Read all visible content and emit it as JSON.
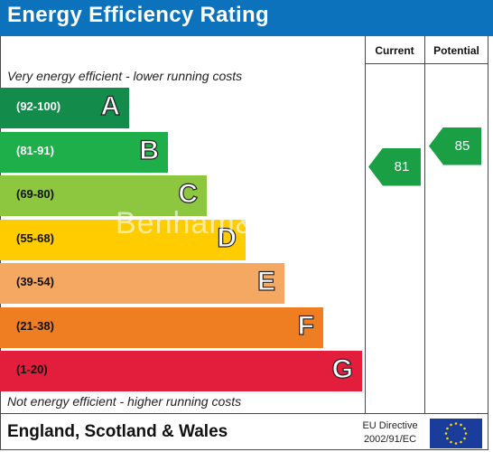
{
  "header": {
    "title": "Energy Efficiency Rating"
  },
  "columns": {
    "current_label": "Current",
    "potential_label": "Potential"
  },
  "captions": {
    "top": "Very energy efficient - lower running costs",
    "bottom": "Not energy efficient - higher running costs"
  },
  "footer": {
    "region": "England, Scotland & Wales",
    "directive_line1": "EU Directive",
    "directive_line2": "2002/91/EC"
  },
  "watermark": "Benham&Reeves",
  "colors": {
    "header": "#0b72bb",
    "arrow": "#1a9f45"
  },
  "chart_data": {
    "type": "bar",
    "title": "Energy Efficiency Rating",
    "bands": [
      {
        "letter": "A",
        "range": "(92-100)",
        "color": "#138b4a"
      },
      {
        "letter": "B",
        "range": "(81-91)",
        "color": "#1eae4a"
      },
      {
        "letter": "C",
        "range": "(69-80)",
        "color": "#8dc63f"
      },
      {
        "letter": "D",
        "range": "(55-68)",
        "color": "#ffcc00"
      },
      {
        "letter": "E",
        "range": "(39-54)",
        "color": "#f5a862"
      },
      {
        "letter": "F",
        "range": "(21-38)",
        "color": "#ef7d22"
      },
      {
        "letter": "G",
        "range": "(1-20)",
        "color": "#e31d3c"
      }
    ],
    "current": 81,
    "potential": 85
  }
}
